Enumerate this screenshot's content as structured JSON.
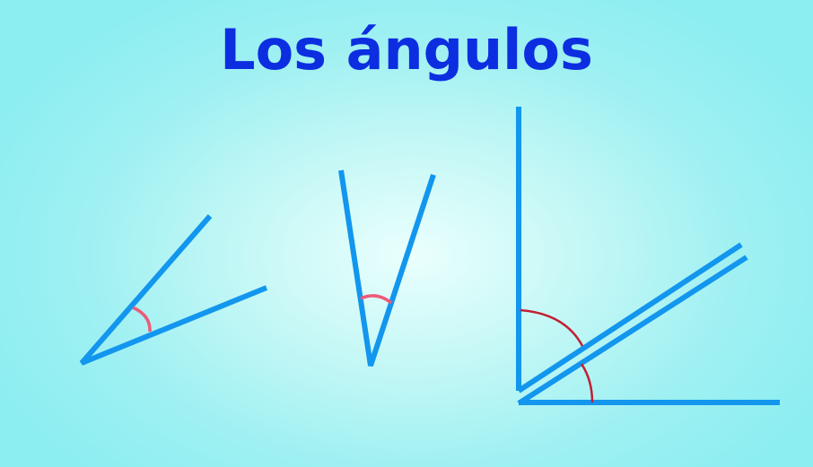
{
  "title": "Los ángulos",
  "colors": {
    "title": "#0c2ee0",
    "ray": "#1296ee",
    "arc_small": "#ee5a78",
    "arc_large": "#c21f33"
  }
}
